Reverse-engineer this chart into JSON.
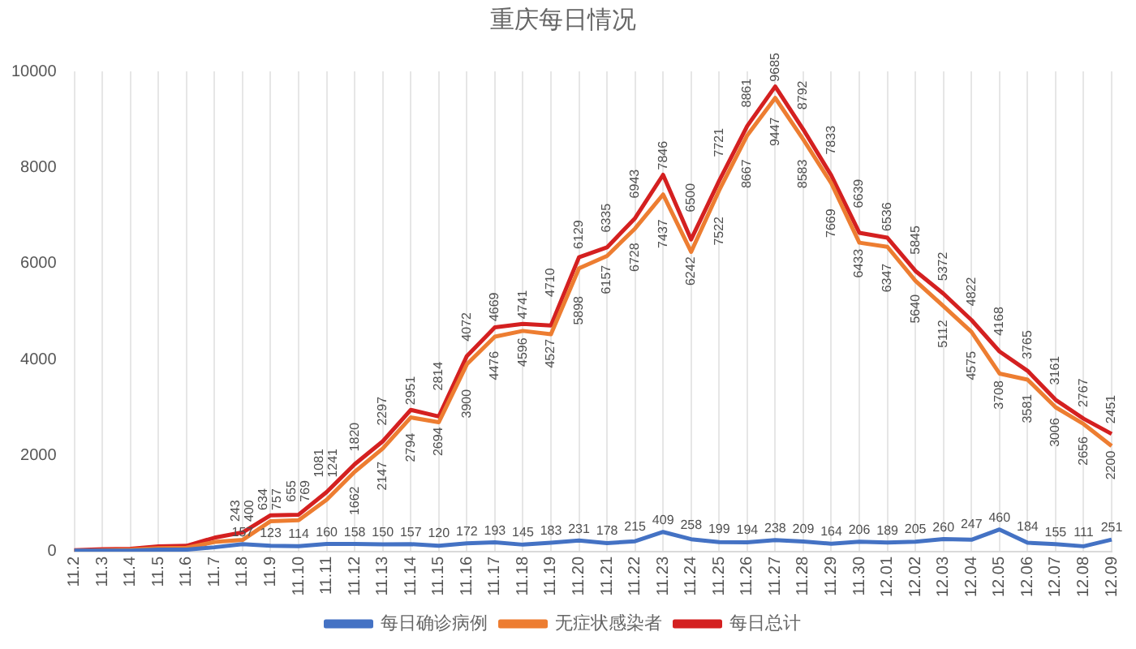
{
  "chart_data": {
    "type": "line",
    "title": "重庆每日情况",
    "categories": [
      "11.2",
      "11.3",
      "11.4",
      "11.5",
      "11.6",
      "11.7",
      "11.8",
      "11.9",
      "11.10",
      "11.11",
      "11.12",
      "11.13",
      "11.14",
      "11.15",
      "11.16",
      "11.17",
      "11.18",
      "11.19",
      "11.20",
      "11.21",
      "11.22",
      "11.23",
      "11.24",
      "11.25",
      "11.26",
      "11.27",
      "11.28",
      "11.29",
      "11.30",
      "12.01",
      "12.02",
      "12.03",
      "12.04",
      "12.05",
      "12.06",
      "12.07",
      "12.08",
      "12.09"
    ],
    "series": [
      {
        "name": "每日确诊病例",
        "color": "#4472c4",
        "values": [
          20,
          20,
          20,
          40,
          40,
          90,
          157,
          123,
          114,
          160,
          158,
          150,
          157,
          120,
          172,
          193,
          145,
          183,
          231,
          178,
          215,
          409,
          258,
          199,
          194,
          238,
          209,
          164,
          206,
          189,
          205,
          260,
          247,
          460,
          184,
          155,
          111,
          251
        ],
        "value_labels": [
          null,
          null,
          null,
          null,
          null,
          null,
          "157",
          "123",
          "114",
          "160",
          "158",
          "150",
          "157",
          "120",
          "172",
          "193",
          "145",
          "183",
          "231",
          "178",
          "215",
          "409",
          "258",
          "199",
          "194",
          "238",
          "209",
          "164",
          "206",
          "189",
          "205",
          "260",
          "247",
          "460",
          "184",
          "155",
          "111",
          "251"
        ]
      },
      {
        "name": "无症状感染者",
        "color": "#ed7d31",
        "values": [
          10,
          30,
          40,
          70,
          80,
          200,
          243,
          634,
          655,
          1081,
          1662,
          2147,
          2794,
          2694,
          3900,
          4476,
          4596,
          4527,
          5898,
          6157,
          6728,
          7437,
          6242,
          7522,
          8667,
          9447,
          8583,
          7669,
          6433,
          6347,
          5640,
          5112,
          4575,
          3708,
          3581,
          3006,
          2656,
          2200
        ],
        "value_labels": [
          null,
          null,
          null,
          null,
          null,
          null,
          "243",
          "634",
          "655",
          "1081",
          "1662",
          "2147",
          "2794",
          "2694",
          "3900",
          "4476",
          "4596",
          "4527",
          "5898",
          "6157",
          "6728",
          "7437",
          "6242",
          "7522",
          "8667",
          "9447",
          "8583",
          "7669",
          "6433",
          "6347",
          "5640",
          "5112",
          "4575",
          "3708",
          "3581",
          "3006",
          "2656",
          "2200"
        ]
      },
      {
        "name": "每日总计",
        "color": "#d42020",
        "values": [
          30,
          50,
          60,
          110,
          120,
          290,
          400,
          757,
          769,
          1241,
          1820,
          2297,
          2951,
          2814,
          4072,
          4669,
          4741,
          4710,
          6129,
          6335,
          6943,
          7846,
          6500,
          7721,
          8861,
          9685,
          8792,
          7833,
          6639,
          6536,
          5845,
          5372,
          4822,
          4168,
          3765,
          3161,
          2767,
          2451
        ],
        "value_labels": [
          null,
          null,
          null,
          null,
          null,
          null,
          "400",
          "757",
          "769",
          "1241",
          "1820",
          "2297",
          "2951",
          "2814",
          "4072",
          "4669",
          "4741",
          "4710",
          "6129",
          "6335",
          "6943",
          "7846",
          "6500",
          "7721",
          "8861",
          "9685",
          "8792",
          "7833",
          "6639",
          "6536",
          "5845",
          "5372",
          "4822",
          "4168",
          "3765",
          "3161",
          "2767",
          "2451"
        ]
      }
    ],
    "ylim": [
      0,
      10000
    ],
    "yticks": [
      0,
      2000,
      4000,
      6000,
      8000,
      10000
    ],
    "grid": "x",
    "legend": "bottom"
  }
}
